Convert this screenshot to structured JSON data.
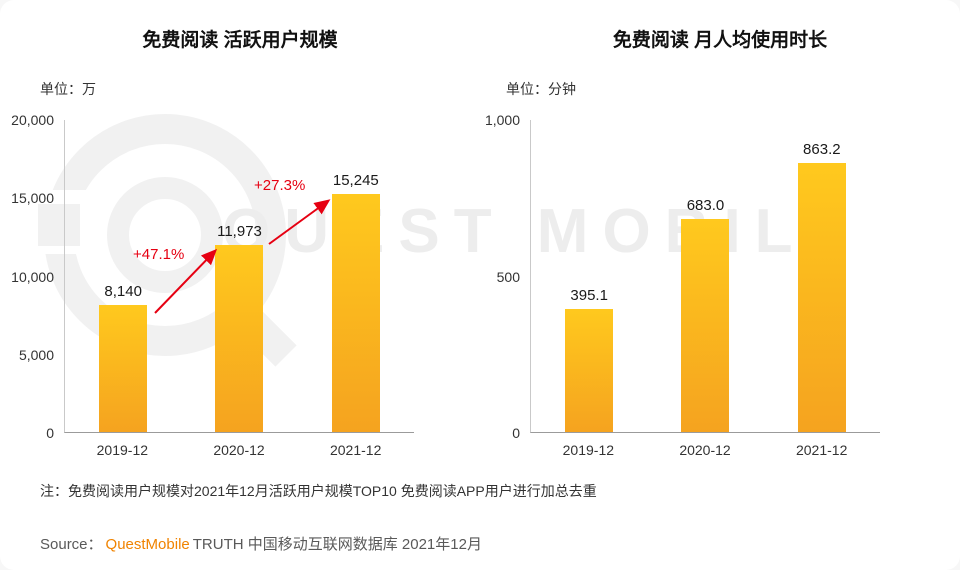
{
  "watermark": {
    "text": "QUEST MOBILE"
  },
  "charts": [
    {
      "title": "免费阅读 活跃用户规模",
      "unit_label": "单位：万",
      "chart_data": {
        "type": "bar",
        "categories": [
          "2019-12",
          "2020-12",
          "2021-12"
        ],
        "values": [
          8140,
          11973,
          15245
        ],
        "value_labels": [
          "8,140",
          "11,973",
          "15,245"
        ],
        "ylabel": "万",
        "ylim": [
          0,
          20000
        ],
        "grid": false,
        "yticks": [
          {
            "label": "20,000",
            "value": 20000
          },
          {
            "label": "15,000",
            "value": 15000
          },
          {
            "label": "10,000",
            "value": 10000
          },
          {
            "label": "5,000",
            "value": 5000
          },
          {
            "label": "0",
            "value": 0
          }
        ],
        "growth_annotations": [
          {
            "label": "+47.1%",
            "from": "2019-12",
            "to": "2020-12"
          },
          {
            "label": "+27.3%",
            "from": "2020-12",
            "to": "2021-12"
          }
        ]
      }
    },
    {
      "title": "免费阅读 月人均使用时长",
      "unit_label": "单位：分钟",
      "chart_data": {
        "type": "bar",
        "categories": [
          "2019-12",
          "2020-12",
          "2021-12"
        ],
        "values": [
          395.1,
          683.0,
          863.2
        ],
        "value_labels": [
          "395.1",
          "683.0",
          "863.2"
        ],
        "ylabel": "分钟",
        "ylim": [
          0,
          1000
        ],
        "grid": false,
        "yticks": [
          {
            "label": "1,000",
            "value": 1000
          },
          {
            "label": "500",
            "value": 500
          },
          {
            "label": "0",
            "value": 0
          }
        ]
      }
    }
  ],
  "footer": {
    "note": "注：免费阅读用户规模对2021年12月活跃用户规模TOP10 免费阅读APP用户进行加总去重",
    "source_label": "Source：",
    "source_brand": "QuestMobile",
    "source_rest": "TRUTH 中国移动互联网数据库 2021年12月"
  },
  "colors": {
    "bar_gradient_top": "#FFC91E",
    "bar_gradient_bottom": "#F5A31F",
    "growth_red": "#E60012",
    "brand_orange": "#F08300"
  }
}
